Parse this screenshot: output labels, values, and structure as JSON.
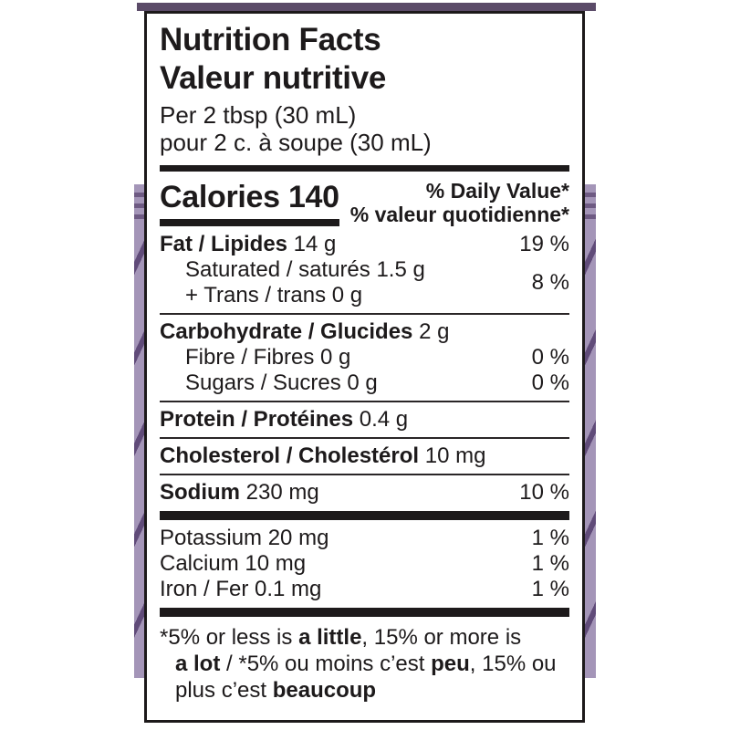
{
  "colors": {
    "label_border": "#1c191a",
    "text": "#1d1a1b",
    "package_purple_dark": "#5b4b68",
    "package_purple_light": "#a495b8",
    "package_purple_stripe": "#6e5a83"
  },
  "label": {
    "title_en": "Nutrition Facts",
    "title_fr": "Valeur nutritive",
    "serving_en": "Per 2 tbsp (30 mL)",
    "serving_fr": "pour 2 c. à soupe (30 mL)",
    "calories_word": "Calories",
    "calories_value": "140",
    "dv_header_en": "% Daily Value*",
    "dv_header_fr": "% valeur quotidienne*",
    "rows": [
      {
        "bold": "Fat / Lipides",
        "rest": " 14 g",
        "dv": "19 %"
      },
      {
        "line1": "Saturated / saturés 1.5 g",
        "line2": "+ Trans / trans 0 g",
        "dv": "8 %"
      },
      {
        "bold": "Carbohydrate / Glucides",
        "rest": " 2 g",
        "dv": ""
      },
      {
        "rest": "Fibre / Fibres 0 g",
        "dv": "0 %"
      },
      {
        "rest": "Sugars / Sucres 0 g",
        "dv": "0 %"
      },
      {
        "bold": "Protein / Protéines",
        "rest": " 0.4 g",
        "dv": ""
      },
      {
        "bold": "Cholesterol / Cholestérol",
        "rest": " 10 mg",
        "dv": ""
      },
      {
        "bold": "Sodium",
        "rest": " 230 mg",
        "dv": "10 %"
      },
      {
        "rest": "Potassium 20 mg",
        "dv": "1 %"
      },
      {
        "rest": "Calcium 10 mg",
        "dv": "1 %"
      },
      {
        "rest": "Iron / Fer 0.1 mg",
        "dv": "1 %"
      }
    ],
    "footnote": {
      "l1a": "*5% or less is ",
      "l1b": "a little",
      "l1c": ", 15% or more is",
      "l2a": "a lot",
      "l2b": " / *5% ou moins c’est ",
      "l2c": "peu",
      "l2d": ", 15% ou",
      "l3a": "plus c’est ",
      "l3b": "beaucoup"
    }
  }
}
